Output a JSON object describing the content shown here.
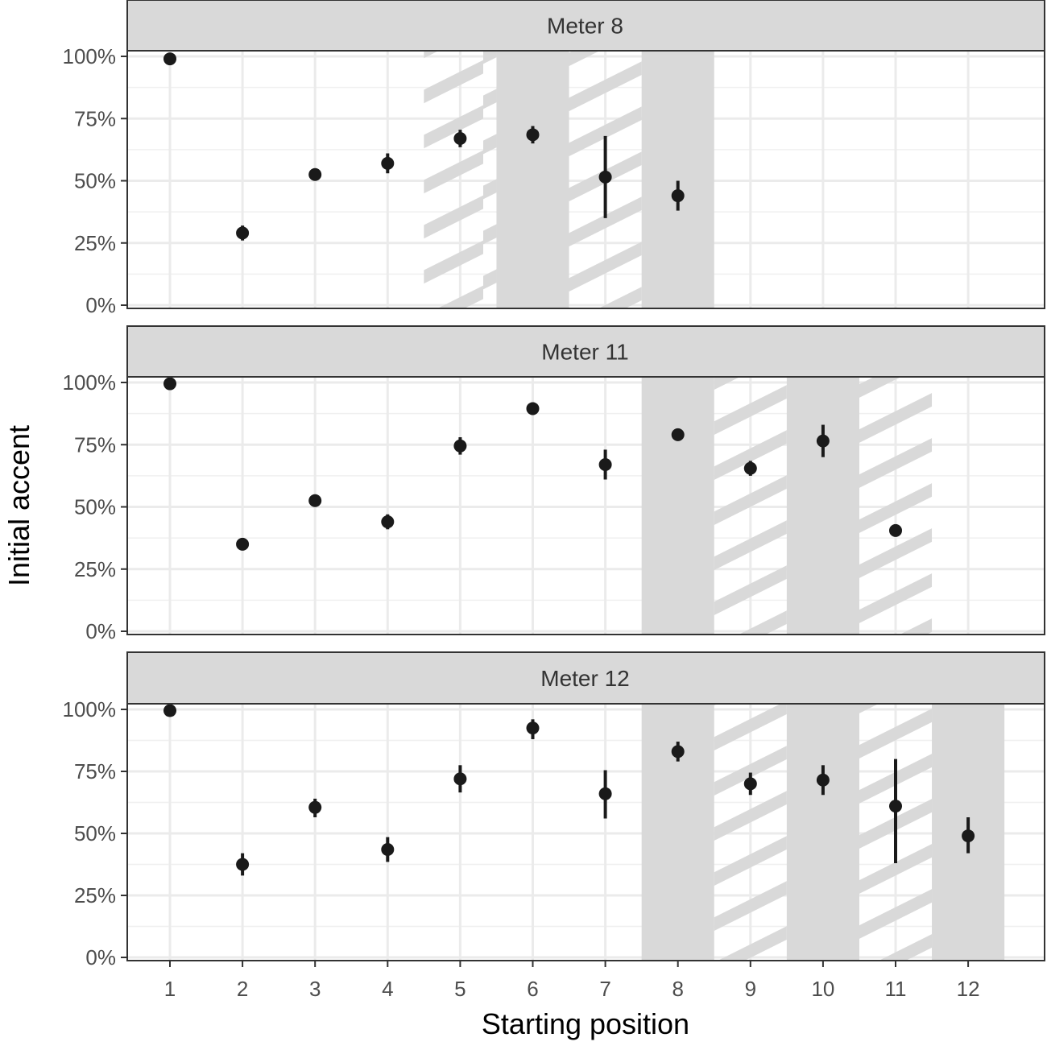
{
  "chart_data": {
    "type": "scatter",
    "variant": "faceted point estimates with error bars",
    "xlabel": "Starting position",
    "ylabel": "Initial accent",
    "x_ticks": [
      "1",
      "2",
      "3",
      "4",
      "5",
      "6",
      "7",
      "8",
      "9",
      "10",
      "11",
      "12"
    ],
    "xlim": [
      0.5,
      12.5
    ],
    "y_ticks": [
      "0%",
      "25%",
      "50%",
      "75%",
      "100%"
    ],
    "ylim": [
      0,
      100
    ],
    "y_unit": "%",
    "grid": true,
    "facet_strip_color": "#d9d9d9",
    "shade_color": "#d9d9d9",
    "point_color": "#1a1a1a",
    "facets": [
      {
        "label": "Meter 8",
        "points": [
          {
            "x": 1,
            "y": 99,
            "lo": 98,
            "hi": 100
          },
          {
            "x": 2,
            "y": 29,
            "lo": 26,
            "hi": 32
          },
          {
            "x": 3,
            "y": 52.5,
            "lo": 50.5,
            "hi": 54.5
          },
          {
            "x": 4,
            "y": 57,
            "lo": 53,
            "hi": 61
          },
          {
            "x": 5,
            "y": 67,
            "lo": 63.5,
            "hi": 70.5
          },
          {
            "x": 6,
            "y": 68.5,
            "lo": 65,
            "hi": 72
          },
          {
            "x": 7,
            "y": 51.5,
            "lo": 35,
            "hi": 68
          },
          {
            "x": 8,
            "y": 44,
            "lo": 38,
            "hi": 50
          }
        ],
        "solid_bands": [
          6,
          8
        ],
        "hatched_bands": [
          5,
          7
        ]
      },
      {
        "label": "Meter 11",
        "points": [
          {
            "x": 1,
            "y": 99.5,
            "lo": 98.5,
            "hi": 100
          },
          {
            "x": 2,
            "y": 35,
            "lo": 33,
            "hi": 37
          },
          {
            "x": 3,
            "y": 52.5,
            "lo": 51,
            "hi": 54
          },
          {
            "x": 4,
            "y": 44,
            "lo": 41,
            "hi": 47
          },
          {
            "x": 5,
            "y": 74.5,
            "lo": 71,
            "hi": 78
          },
          {
            "x": 6,
            "y": 89.5,
            "lo": 87,
            "hi": 92
          },
          {
            "x": 7,
            "y": 67,
            "lo": 61,
            "hi": 73
          },
          {
            "x": 8,
            "y": 79,
            "lo": 77,
            "hi": 81
          },
          {
            "x": 9,
            "y": 65.5,
            "lo": 62.5,
            "hi": 68.5
          },
          {
            "x": 10,
            "y": 76.5,
            "lo": 70,
            "hi": 83
          },
          {
            "x": 11,
            "y": 40.5,
            "lo": 38.5,
            "hi": 43
          }
        ],
        "solid_bands": [
          8,
          10
        ],
        "hatched_bands": [
          9,
          11
        ]
      },
      {
        "label": "Meter 12",
        "points": [
          {
            "x": 1,
            "y": 99.5,
            "lo": 98.5,
            "hi": 100
          },
          {
            "x": 2,
            "y": 37.5,
            "lo": 33,
            "hi": 42
          },
          {
            "x": 3,
            "y": 60.5,
            "lo": 56.5,
            "hi": 64
          },
          {
            "x": 4,
            "y": 43.5,
            "lo": 38.5,
            "hi": 48.5
          },
          {
            "x": 5,
            "y": 72,
            "lo": 66.5,
            "hi": 77.5
          },
          {
            "x": 6,
            "y": 92.5,
            "lo": 88,
            "hi": 96
          },
          {
            "x": 7,
            "y": 66,
            "lo": 56,
            "hi": 75.5
          },
          {
            "x": 8,
            "y": 83,
            "lo": 79,
            "hi": 87
          },
          {
            "x": 9,
            "y": 70,
            "lo": 65.5,
            "hi": 74.5
          },
          {
            "x": 10,
            "y": 71.5,
            "lo": 65.5,
            "hi": 77.5
          },
          {
            "x": 11,
            "y": 61,
            "lo": 38,
            "hi": 80
          },
          {
            "x": 12,
            "y": 49,
            "lo": 42,
            "hi": 56.5
          }
        ],
        "solid_bands": [
          8,
          10,
          12
        ],
        "hatched_bands": [
          9,
          11
        ]
      }
    ]
  }
}
